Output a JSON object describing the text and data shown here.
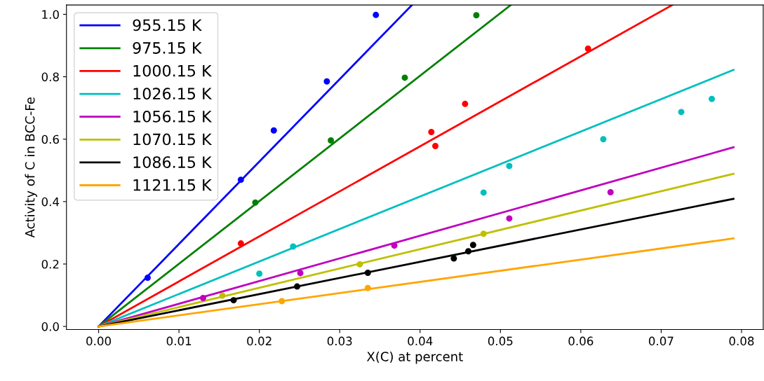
{
  "chart_data": {
    "type": "scatter",
    "xlabel": "X(C) at percent",
    "ylabel": "Activity of C in BCC-Fe",
    "xlim": [
      -0.004,
      0.0827
    ],
    "ylim": [
      -0.01,
      1.03
    ],
    "xticks": [
      {
        "value": 0,
        "label": "0.00"
      },
      0.01,
      0.02,
      0.03,
      0.04,
      0.05,
      0.06,
      0.07,
      0.08
    ],
    "yticks": [
      {
        "value": 0,
        "label": "0.0"
      },
      0.2,
      0.4,
      0.6,
      0.8,
      {
        "value": 1,
        "label": "1.0"
      }
    ],
    "grid": false,
    "legend": "top left",
    "line_style": "solid",
    "series": [
      {
        "type": "line",
        "name": "955.15 K",
        "color": "#0000ff",
        "x": [
          0,
          0.039
        ],
        "values": [
          0,
          1.03
        ]
      },
      {
        "type": "line",
        "name": "975.15 K",
        "color": "#008000",
        "x": [
          0,
          0.0513
        ],
        "values": [
          0,
          1.03
        ]
      },
      {
        "type": "line",
        "name": "1000.15 K",
        "color": "#ff0000",
        "x": [
          0,
          0.0714
        ],
        "values": [
          0,
          1.03
        ]
      },
      {
        "type": "line",
        "name": "1026.15 K",
        "color": "#00bfbf",
        "x": [
          0,
          0.079
        ],
        "values": [
          0,
          0.822
        ]
      },
      {
        "type": "line",
        "name": "1056.15 K",
        "color": "#bf00bf",
        "x": [
          0,
          0.079
        ],
        "values": [
          0,
          0.574
        ]
      },
      {
        "type": "line",
        "name": "1070.15 K",
        "color": "#bfbf00",
        "x": [
          0,
          0.079
        ],
        "values": [
          0,
          0.489
        ]
      },
      {
        "type": "line",
        "name": "1086.15 K",
        "color": "#000000",
        "x": [
          0,
          0.079
        ],
        "values": [
          0,
          0.409
        ]
      },
      {
        "type": "line",
        "name": "1121.15 K",
        "color": "#ffa500",
        "x": [
          0,
          0.079
        ],
        "values": [
          0,
          0.282
        ]
      },
      {
        "marker": "circle",
        "color": "#0000ff",
        "x": [
          0.0061,
          0.0177,
          0.0218,
          0.0284,
          0.0345
        ],
        "values": [
          0.156,
          0.47,
          0.628,
          0.785,
          0.998
        ]
      },
      {
        "marker": "circle",
        "color": "#008000",
        "x": [
          0.0195,
          0.0289,
          0.0381,
          0.047
        ],
        "values": [
          0.397,
          0.596,
          0.797,
          0.997
        ]
      },
      {
        "marker": "circle",
        "color": "#ff0000",
        "x": [
          0.0177,
          0.0414,
          0.0419,
          0.0456,
          0.0609
        ],
        "values": [
          0.266,
          0.623,
          0.578,
          0.713,
          0.89
        ]
      },
      {
        "marker": "circle",
        "color": "#00bfbf",
        "x": [
          0.02,
          0.0242,
          0.0479,
          0.0511,
          0.0628,
          0.0725,
          0.0763
        ],
        "values": [
          0.169,
          0.256,
          0.429,
          0.514,
          0.6,
          0.687,
          0.729
        ]
      },
      {
        "marker": "circle",
        "color": "#bf00bf",
        "x": [
          0.013,
          0.0251,
          0.0368,
          0.0511,
          0.0637
        ],
        "values": [
          0.091,
          0.171,
          0.259,
          0.346,
          0.43
        ]
      },
      {
        "marker": "circle",
        "color": "#bfbf00",
        "x": [
          0.0154,
          0.0325,
          0.0479
        ],
        "values": [
          0.099,
          0.199,
          0.297
        ]
      },
      {
        "marker": "circle",
        "color": "#000000",
        "x": [
          0.0168,
          0.0247,
          0.0335,
          0.0442,
          0.046,
          0.0466
        ],
        "values": [
          0.084,
          0.128,
          0.172,
          0.218,
          0.241,
          0.261
        ]
      },
      {
        "marker": "circle",
        "color": "#ffa500",
        "x": [
          0.0228,
          0.0335
        ],
        "values": [
          0.081,
          0.123
        ]
      }
    ]
  }
}
